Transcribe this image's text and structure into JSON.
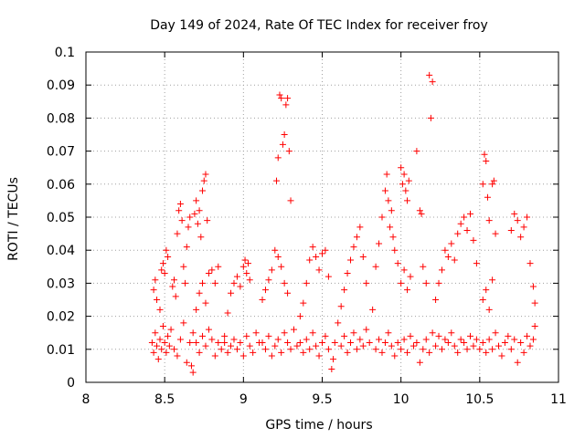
{
  "chart_data": {
    "type": "scatter",
    "title": "Day 149 of 2024, Rate Of TEC Index for receiver froy",
    "xlabel": "GPS time / hours",
    "ylabel": "ROTI / TECUs",
    "xlim": [
      8,
      11
    ],
    "ylim": [
      0,
      0.1
    ],
    "xticks": [
      8,
      8.5,
      9,
      9.5,
      10,
      10.5,
      11
    ],
    "xtick_labels": [
      "8",
      "8.5",
      "9",
      "9.5",
      "10",
      "10.5",
      "11"
    ],
    "yticks": [
      0,
      0.01,
      0.02,
      0.03,
      0.04,
      0.05,
      0.06,
      0.07,
      0.08,
      0.09,
      0.1
    ],
    "ytick_labels": [
      "0",
      "0.01",
      "0.02",
      "0.03",
      "0.04",
      "0.05",
      "0.06",
      "0.07",
      "0.08",
      "0.09",
      "0.1"
    ],
    "grid": true,
    "marker": "plus",
    "color": "#ff0000",
    "series": [
      {
        "name": "ROTI",
        "points": [
          [
            8.42,
            0.012
          ],
          [
            8.43,
            0.009
          ],
          [
            8.44,
            0.015
          ],
          [
            8.45,
            0.011
          ],
          [
            8.46,
            0.007
          ],
          [
            8.47,
            0.013
          ],
          [
            8.48,
            0.01
          ],
          [
            8.49,
            0.017
          ],
          [
            8.43,
            0.028
          ],
          [
            8.44,
            0.031
          ],
          [
            8.45,
            0.025
          ],
          [
            8.47,
            0.022
          ],
          [
            8.48,
            0.034
          ],
          [
            8.49,
            0.036
          ],
          [
            8.5,
            0.033
          ],
          [
            8.51,
            0.04
          ],
          [
            8.52,
            0.038
          ],
          [
            8.5,
            0.012
          ],
          [
            8.51,
            0.009
          ],
          [
            8.52,
            0.014
          ],
          [
            8.53,
            0.011
          ],
          [
            8.54,
            0.016
          ],
          [
            8.55,
            0.029
          ],
          [
            8.56,
            0.031
          ],
          [
            8.57,
            0.026
          ],
          [
            8.58,
            0.045
          ],
          [
            8.59,
            0.052
          ],
          [
            8.6,
            0.054
          ],
          [
            8.61,
            0.049
          ],
          [
            8.62,
            0.035
          ],
          [
            8.63,
            0.03
          ],
          [
            8.64,
            0.041
          ],
          [
            8.65,
            0.047
          ],
          [
            8.66,
            0.05
          ],
          [
            8.56,
            0.01
          ],
          [
            8.58,
            0.008
          ],
          [
            8.6,
            0.013
          ],
          [
            8.62,
            0.018
          ],
          [
            8.64,
            0.006
          ],
          [
            8.66,
            0.012
          ],
          [
            8.67,
            0.005
          ],
          [
            8.68,
            0.003
          ],
          [
            8.68,
            0.015
          ],
          [
            8.69,
            0.051
          ],
          [
            8.7,
            0.055
          ],
          [
            8.71,
            0.048
          ],
          [
            8.72,
            0.052
          ],
          [
            8.73,
            0.044
          ],
          [
            8.74,
            0.058
          ],
          [
            8.75,
            0.061
          ],
          [
            8.76,
            0.063
          ],
          [
            8.77,
            0.049
          ],
          [
            8.7,
            0.022
          ],
          [
            8.72,
            0.027
          ],
          [
            8.74,
            0.03
          ],
          [
            8.76,
            0.024
          ],
          [
            8.78,
            0.033
          ],
          [
            8.8,
            0.034
          ],
          [
            8.82,
            0.03
          ],
          [
            8.84,
            0.035
          ],
          [
            8.7,
            0.012
          ],
          [
            8.72,
            0.009
          ],
          [
            8.74,
            0.014
          ],
          [
            8.76,
            0.011
          ],
          [
            8.78,
            0.016
          ],
          [
            8.8,
            0.013
          ],
          [
            8.82,
            0.008
          ],
          [
            8.84,
            0.012
          ],
          [
            8.86,
            0.01
          ],
          [
            8.88,
            0.014
          ],
          [
            8.9,
            0.021
          ],
          [
            8.92,
            0.027
          ],
          [
            8.94,
            0.03
          ],
          [
            8.96,
            0.032
          ],
          [
            8.98,
            0.029
          ],
          [
            9.0,
            0.035
          ],
          [
            9.01,
            0.037
          ],
          [
            9.02,
            0.033
          ],
          [
            9.03,
            0.036
          ],
          [
            9.04,
            0.031
          ],
          [
            8.88,
            0.012
          ],
          [
            8.9,
            0.009
          ],
          [
            8.92,
            0.011
          ],
          [
            8.94,
            0.013
          ],
          [
            8.96,
            0.01
          ],
          [
            8.98,
            0.012
          ],
          [
            9.0,
            0.008
          ],
          [
            9.02,
            0.014
          ],
          [
            9.04,
            0.011
          ],
          [
            9.06,
            0.009
          ],
          [
            9.08,
            0.015
          ],
          [
            9.1,
            0.012
          ],
          [
            9.12,
            0.025
          ],
          [
            9.14,
            0.028
          ],
          [
            9.16,
            0.031
          ],
          [
            9.18,
            0.034
          ],
          [
            9.2,
            0.04
          ],
          [
            9.21,
            0.061
          ],
          [
            9.22,
            0.068
          ],
          [
            9.23,
            0.087
          ],
          [
            9.24,
            0.086
          ],
          [
            9.25,
            0.072
          ],
          [
            9.26,
            0.075
          ],
          [
            9.27,
            0.084
          ],
          [
            9.28,
            0.086
          ],
          [
            9.29,
            0.07
          ],
          [
            9.3,
            0.055
          ],
          [
            9.22,
            0.038
          ],
          [
            9.24,
            0.035
          ],
          [
            9.26,
            0.03
          ],
          [
            9.28,
            0.027
          ],
          [
            9.12,
            0.012
          ],
          [
            9.14,
            0.01
          ],
          [
            9.16,
            0.014
          ],
          [
            9.18,
            0.008
          ],
          [
            9.2,
            0.011
          ],
          [
            9.22,
            0.013
          ],
          [
            9.24,
            0.009
          ],
          [
            9.26,
            0.015
          ],
          [
            9.28,
            0.012
          ],
          [
            9.3,
            0.01
          ],
          [
            9.32,
            0.016
          ],
          [
            9.34,
            0.011
          ],
          [
            9.36,
            0.02
          ],
          [
            9.38,
            0.024
          ],
          [
            9.4,
            0.03
          ],
          [
            9.42,
            0.037
          ],
          [
            9.44,
            0.041
          ],
          [
            9.46,
            0.038
          ],
          [
            9.48,
            0.034
          ],
          [
            9.5,
            0.039
          ],
          [
            9.52,
            0.04
          ],
          [
            9.54,
            0.032
          ],
          [
            9.36,
            0.012
          ],
          [
            9.38,
            0.009
          ],
          [
            9.4,
            0.013
          ],
          [
            9.42,
            0.01
          ],
          [
            9.44,
            0.015
          ],
          [
            9.46,
            0.011
          ],
          [
            9.48,
            0.008
          ],
          [
            9.5,
            0.012
          ],
          [
            9.52,
            0.014
          ],
          [
            9.54,
            0.01
          ],
          [
            9.56,
            0.004
          ],
          [
            9.57,
            0.007
          ],
          [
            9.58,
            0.012
          ],
          [
            9.6,
            0.018
          ],
          [
            9.62,
            0.023
          ],
          [
            9.64,
            0.028
          ],
          [
            9.66,
            0.033
          ],
          [
            9.68,
            0.037
          ],
          [
            9.7,
            0.041
          ],
          [
            9.72,
            0.044
          ],
          [
            9.74,
            0.047
          ],
          [
            9.76,
            0.038
          ],
          [
            9.78,
            0.03
          ],
          [
            9.62,
            0.011
          ],
          [
            9.64,
            0.014
          ],
          [
            9.66,
            0.009
          ],
          [
            9.68,
            0.012
          ],
          [
            9.7,
            0.015
          ],
          [
            9.72,
            0.01
          ],
          [
            9.74,
            0.013
          ],
          [
            9.76,
            0.011
          ],
          [
            9.78,
            0.016
          ],
          [
            9.8,
            0.012
          ],
          [
            9.82,
            0.022
          ],
          [
            9.84,
            0.035
          ],
          [
            9.86,
            0.042
          ],
          [
            9.88,
            0.05
          ],
          [
            9.9,
            0.058
          ],
          [
            9.91,
            0.063
          ],
          [
            9.92,
            0.055
          ],
          [
            9.93,
            0.047
          ],
          [
            9.94,
            0.052
          ],
          [
            9.95,
            0.044
          ],
          [
            9.96,
            0.04
          ],
          [
            9.98,
            0.036
          ],
          [
            9.84,
            0.01
          ],
          [
            9.86,
            0.013
          ],
          [
            9.88,
            0.009
          ],
          [
            9.9,
            0.012
          ],
          [
            9.92,
            0.015
          ],
          [
            9.94,
            0.011
          ],
          [
            9.96,
            0.008
          ],
          [
            9.98,
            0.012
          ],
          [
            10.0,
            0.065
          ],
          [
            10.01,
            0.06
          ],
          [
            10.02,
            0.063
          ],
          [
            10.03,
            0.058
          ],
          [
            10.04,
            0.055
          ],
          [
            10.05,
            0.061
          ],
          [
            10.0,
            0.03
          ],
          [
            10.02,
            0.034
          ],
          [
            10.04,
            0.028
          ],
          [
            10.06,
            0.032
          ],
          [
            10.0,
            0.01
          ],
          [
            10.02,
            0.013
          ],
          [
            10.04,
            0.009
          ],
          [
            10.06,
            0.014
          ],
          [
            10.08,
            0.011
          ],
          [
            10.1,
            0.07
          ],
          [
            10.12,
            0.052
          ],
          [
            10.13,
            0.051
          ],
          [
            10.14,
            0.035
          ],
          [
            10.16,
            0.03
          ],
          [
            10.18,
            0.093
          ],
          [
            10.19,
            0.08
          ],
          [
            10.2,
            0.091
          ],
          [
            10.1,
            0.012
          ],
          [
            10.12,
            0.006
          ],
          [
            10.14,
            0.01
          ],
          [
            10.16,
            0.013
          ],
          [
            10.18,
            0.009
          ],
          [
            10.2,
            0.015
          ],
          [
            10.22,
            0.025
          ],
          [
            10.24,
            0.03
          ],
          [
            10.26,
            0.034
          ],
          [
            10.28,
            0.04
          ],
          [
            10.3,
            0.038
          ],
          [
            10.32,
            0.042
          ],
          [
            10.34,
            0.037
          ],
          [
            10.36,
            0.045
          ],
          [
            10.38,
            0.048
          ],
          [
            10.4,
            0.05
          ],
          [
            10.42,
            0.046
          ],
          [
            10.44,
            0.051
          ],
          [
            10.46,
            0.043
          ],
          [
            10.48,
            0.036
          ],
          [
            10.22,
            0.011
          ],
          [
            10.24,
            0.014
          ],
          [
            10.26,
            0.01
          ],
          [
            10.28,
            0.013
          ],
          [
            10.3,
            0.012
          ],
          [
            10.32,
            0.015
          ],
          [
            10.34,
            0.011
          ],
          [
            10.36,
            0.009
          ],
          [
            10.38,
            0.013
          ],
          [
            10.4,
            0.012
          ],
          [
            10.42,
            0.01
          ],
          [
            10.44,
            0.014
          ],
          [
            10.46,
            0.011
          ],
          [
            10.48,
            0.013
          ],
          [
            10.5,
            0.01
          ],
          [
            10.52,
            0.06
          ],
          [
            10.53,
            0.069
          ],
          [
            10.54,
            0.067
          ],
          [
            10.55,
            0.056
          ],
          [
            10.56,
            0.049
          ],
          [
            10.58,
            0.06
          ],
          [
            10.59,
            0.061
          ],
          [
            10.6,
            0.045
          ],
          [
            10.52,
            0.025
          ],
          [
            10.54,
            0.028
          ],
          [
            10.56,
            0.022
          ],
          [
            10.58,
            0.031
          ],
          [
            10.52,
            0.012
          ],
          [
            10.54,
            0.009
          ],
          [
            10.56,
            0.013
          ],
          [
            10.58,
            0.01
          ],
          [
            10.6,
            0.015
          ],
          [
            10.62,
            0.011
          ],
          [
            10.64,
            0.008
          ],
          [
            10.66,
            0.012
          ],
          [
            10.68,
            0.014
          ],
          [
            10.7,
            0.046
          ],
          [
            10.72,
            0.051
          ],
          [
            10.74,
            0.049
          ],
          [
            10.76,
            0.044
          ],
          [
            10.78,
            0.047
          ],
          [
            10.8,
            0.05
          ],
          [
            10.82,
            0.036
          ],
          [
            10.84,
            0.029
          ],
          [
            10.85,
            0.024
          ],
          [
            10.7,
            0.01
          ],
          [
            10.72,
            0.013
          ],
          [
            10.74,
            0.006
          ],
          [
            10.76,
            0.012
          ],
          [
            10.78,
            0.009
          ],
          [
            10.8,
            0.014
          ],
          [
            10.82,
            0.011
          ],
          [
            10.84,
            0.013
          ],
          [
            10.85,
            0.017
          ]
        ]
      }
    ]
  }
}
